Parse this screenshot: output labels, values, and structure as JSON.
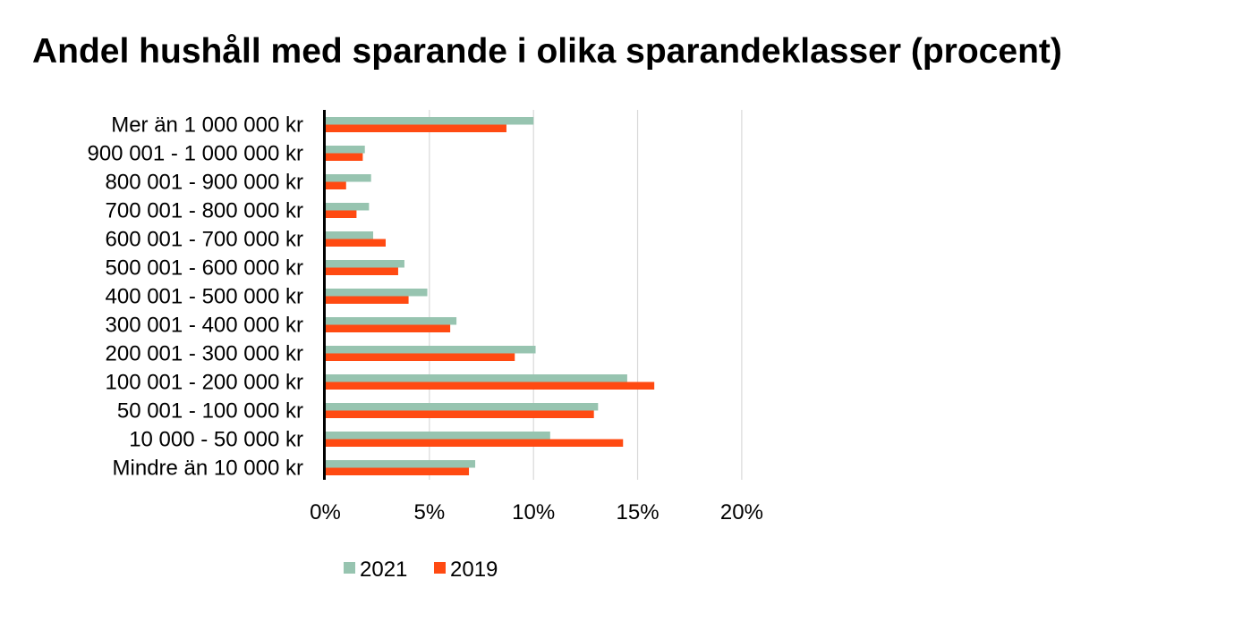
{
  "title": "Andel hushåll med sparande i olika sparandeklasser (procent)",
  "chart_data": {
    "type": "bar",
    "orientation": "horizontal",
    "title": "Andel hushåll med sparande i olika sparandeklasser (procent)",
    "xlabel": "",
    "ylabel": "",
    "xlim": [
      0,
      20
    ],
    "xticks": [
      0,
      5,
      10,
      15,
      20
    ],
    "xtick_labels": [
      "0%",
      "5%",
      "10%",
      "15%",
      "20%"
    ],
    "grid": "vertical",
    "legend_position": "bottom",
    "categories": [
      "Mer än 1 000 000 kr",
      "900 001 - 1 000 000 kr",
      "800 001 - 900 000 kr",
      "700 001 - 800 000 kr",
      "600 001 - 700 000 kr",
      "500 001 - 600 000 kr",
      "400 001 - 500 000 kr",
      "300 001 - 400 000 kr",
      "200 001 - 300 000 kr",
      "100 001 - 200 000 kr",
      "50 001 - 100 000 kr",
      "10 000 - 50 000 kr",
      "Mindre än 10 000 kr"
    ],
    "series": [
      {
        "name": "2021",
        "color": "#97c4b0",
        "values": [
          10.0,
          1.9,
          2.2,
          2.1,
          2.3,
          3.8,
          4.9,
          6.3,
          10.1,
          14.5,
          13.1,
          10.8,
          7.2
        ]
      },
      {
        "name": "2019",
        "color": "#ff4a12",
        "values": [
          8.7,
          1.8,
          1.0,
          1.5,
          2.9,
          3.5,
          4.0,
          6.0,
          9.1,
          15.8,
          12.9,
          14.3,
          6.9
        ]
      }
    ]
  }
}
